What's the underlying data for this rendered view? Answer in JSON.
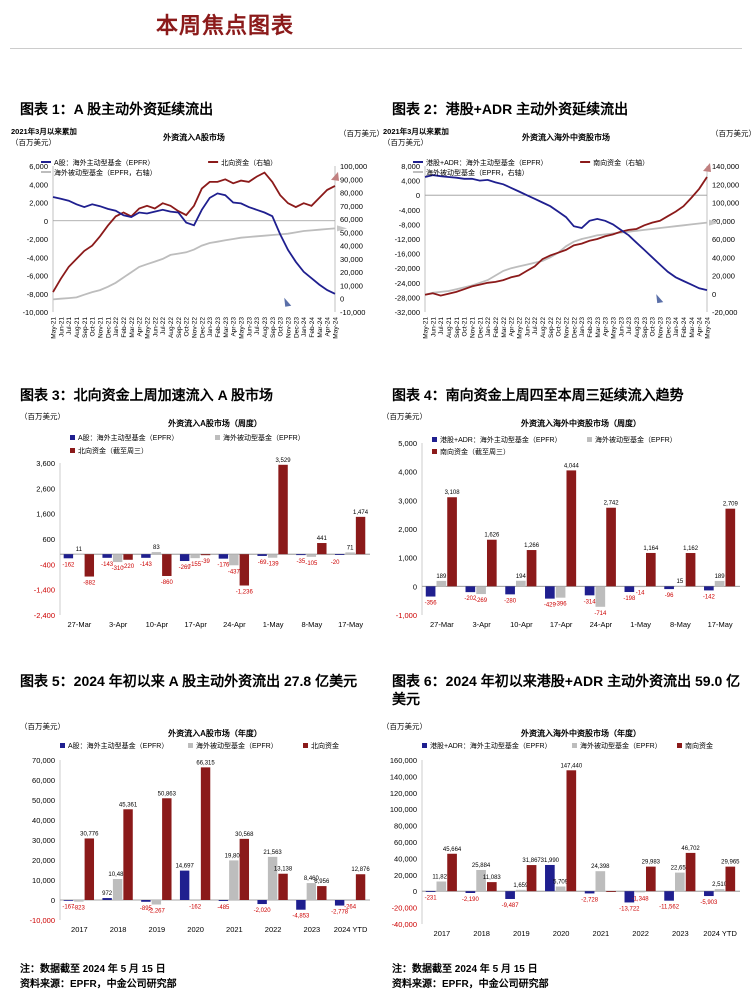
{
  "page_title": "本周焦点图表",
  "colors": {
    "navy": "#1f1f8f",
    "dred": "#8b1a1a",
    "gray": "#bdbdbd",
    "red": "#cc0000"
  },
  "figures": [
    {
      "title": "图表 1：A 股主动外资延续流出"
    },
    {
      "title": "图表 2：港股+ADR 主动外资延续流出"
    },
    {
      "title": "图表 3：北向资金上周加速流入 A 股市场"
    },
    {
      "title": "图表 4：南向资金上周四至本周三延续流入趋势"
    },
    {
      "title": "图表 5：2024 年初以来 A 股主动外资流出 27.8 亿美元"
    },
    {
      "title": "图表 6：2024 年初以来港股+ADR 主动外资流出 59.0 亿美元"
    }
  ],
  "notes": [
    "注：数据截至 2024 年 5 月 15 日",
    "资料来源：EPFR，中金公司研究部"
  ],
  "chart_data": [
    {
      "type": "line",
      "title": "外资流入A股市场",
      "subtitle": "2021年3月以来累加",
      "left_unit": "（百万美元）",
      "right_unit": "（百万美元）",
      "ylim_left": [
        -10000,
        6000
      ],
      "ylim_right": [
        -10000,
        100000
      ],
      "yticks_left": [
        "6,000",
        "4,000",
        "2,000",
        "0",
        "-2,000",
        "-4,000",
        "-6,000",
        "-8,000",
        "-10,000"
      ],
      "yticks_right": [
        "100,000",
        "90,000",
        "80,000",
        "70,000",
        "60,000",
        "50,000",
        "40,000",
        "30,000",
        "20,000",
        "10,000",
        "0",
        "-10,000"
      ],
      "x_labels": [
        "May-21",
        "Jun-21",
        "Jul-21",
        "Aug-21",
        "Sep-21",
        "Oct-21",
        "Nov-21",
        "Dec-21",
        "Jan-22",
        "Feb-22",
        "Mar-22",
        "Apr-22",
        "May-22",
        "Jun-22",
        "Jul-22",
        "Aug-22",
        "Sep-22",
        "Oct-22",
        "Nov-22",
        "Dec-22",
        "Jan-23",
        "Feb-23",
        "Mar-23",
        "Apr-23",
        "May-23",
        "Jun-23",
        "Jul-23",
        "Aug-23",
        "Sep-23",
        "Oct-23",
        "Nov-23",
        "Dec-23",
        "Jan-24",
        "Feb-24",
        "Mar-24",
        "Apr-24",
        "May-24"
      ],
      "series": [
        {
          "name": "A股：海外主动型基金（EPFR）",
          "axis": "left",
          "color": "#1f1f8f",
          "values": [
            2600,
            2400,
            2200,
            1800,
            1500,
            1800,
            1600,
            1300,
            1100,
            600,
            400,
            900,
            800,
            1000,
            1200,
            1000,
            900,
            -200,
            -500,
            1200,
            2500,
            3000,
            2800,
            2000,
            1900,
            1500,
            1200,
            900,
            500,
            -1500,
            -3200,
            -4500,
            -5600,
            -6300,
            -7000,
            -7600,
            -8000
          ]
        },
        {
          "name": "北向资金（右轴）",
          "axis": "right",
          "color": "#8b1a1a",
          "values": [
            5000,
            15000,
            24000,
            30000,
            36000,
            40000,
            47000,
            55000,
            62000,
            65000,
            62000,
            68000,
            70000,
            68000,
            72000,
            70000,
            66000,
            63000,
            70000,
            83000,
            88000,
            88000,
            90000,
            87000,
            89000,
            88000,
            92000,
            95000,
            88000,
            78000,
            72000,
            69000,
            72000,
            70000,
            76000,
            82000,
            85000
          ]
        },
        {
          "name": "海外被动型基金（EPFR，右轴）",
          "axis": "right",
          "color": "#bdbdbd",
          "values": [
            -500,
            0,
            500,
            1000,
            3000,
            5000,
            6500,
            9000,
            12000,
            16000,
            20000,
            24000,
            26000,
            28000,
            30000,
            33000,
            34000,
            35000,
            37000,
            40000,
            42000,
            43000,
            44000,
            45000,
            46000,
            46500,
            47000,
            47500,
            48000,
            48500,
            49000,
            50000,
            51000,
            51500,
            52000,
            52500,
            53000
          ]
        }
      ]
    },
    {
      "type": "line",
      "title": "外资流入海外中资股市场",
      "subtitle": "2021年3月以来累加",
      "left_unit": "（百万美元）",
      "right_unit": "（百万美元）",
      "ylim_left": [
        -32000,
        8000
      ],
      "ylim_right": [
        -20000,
        140000
      ],
      "yticks_left": [
        "8,000",
        "4,000",
        "0",
        "-4,000",
        "-8,000",
        "-12,000",
        "-16,000",
        "-20,000",
        "-24,000",
        "-28,000",
        "-32,000"
      ],
      "yticks_right": [
        "140,000",
        "120,000",
        "100,000",
        "80,000",
        "60,000",
        "40,000",
        "20,000",
        "0",
        "-20,000"
      ],
      "x_labels": [
        "May-21",
        "Jun-21",
        "Jul-21",
        "Aug-21",
        "Sep-21",
        "Oct-21",
        "Nov-21",
        "Dec-21",
        "Jan-22",
        "Feb-22",
        "Mar-22",
        "Apr-22",
        "May-22",
        "Jun-22",
        "Jul-22",
        "Aug-22",
        "Sep-22",
        "Oct-22",
        "Nov-22",
        "Dec-22",
        "Jan-23",
        "Feb-23",
        "Mar-23",
        "Apr-23",
        "May-23",
        "Jun-23",
        "Jul-23",
        "Aug-23",
        "Sep-23",
        "Oct-23",
        "Nov-23",
        "Dec-23",
        "Jan-24",
        "Feb-24",
        "Mar-24",
        "Apr-24",
        "May-24"
      ],
      "series": [
        {
          "name": "港股+ADR：海外主动型基金（EPFR）",
          "axis": "left",
          "color": "#1f1f8f",
          "values": [
            5000,
            5500,
            5200,
            5000,
            4800,
            4500,
            4500,
            4000,
            4200,
            3500,
            3000,
            2000,
            1000,
            0,
            -1000,
            -2000,
            -3000,
            -4500,
            -6000,
            -8500,
            -9000,
            -7000,
            -6500,
            -7000,
            -8000,
            -9500,
            -11000,
            -13000,
            -15000,
            -17000,
            -19000,
            -21000,
            -22500,
            -23500,
            -24500,
            -25500,
            -26000
          ]
        },
        {
          "name": "南向资金（右轴）",
          "axis": "right",
          "color": "#8b1a1a",
          "values": [
            -1000,
            500,
            -2000,
            0,
            2000,
            5000,
            8000,
            10000,
            12000,
            13000,
            15000,
            18000,
            20000,
            25000,
            30000,
            38000,
            42000,
            45000,
            48000,
            53000,
            55000,
            58000,
            60000,
            63000,
            65000,
            68000,
            70000,
            71000,
            75000,
            78000,
            80000,
            85000,
            90000,
            96000,
            105000,
            115000,
            128000
          ]
        },
        {
          "name": "海外被动型基金（EPFR，右轴）",
          "axis": "right",
          "color": "#bdbdbd",
          "values": [
            -1000,
            1000,
            2000,
            3000,
            5000,
            7000,
            9000,
            12000,
            15000,
            20000,
            25000,
            28000,
            30000,
            32000,
            34000,
            36000,
            40000,
            45000,
            52000,
            57000,
            60000,
            62000,
            64000,
            65000,
            66000,
            67000,
            68000,
            69000,
            70000,
            71000,
            72000,
            73000,
            74000,
            75000,
            76000,
            77000,
            78000
          ]
        }
      ]
    },
    {
      "type": "bar",
      "title": "外资流入A股市场（周度）",
      "unit": "（百万美元）",
      "ylim": [
        -2400,
        3600
      ],
      "yticks": [
        "3,600",
        "2,600",
        "1,600",
        "600",
        "-400",
        "-1,400",
        "-2,400"
      ],
      "categories": [
        "27-Mar",
        "3-Apr",
        "10-Apr",
        "17-Apr",
        "24-Apr",
        "1-May",
        "8-May",
        "17-May"
      ],
      "series": [
        {
          "name": "A股：海外主动型基金（EPFR）",
          "color": "#1f1f8f",
          "values": [
            -162,
            -143,
            -143,
            -269,
            -176,
            -69,
            -35,
            0
          ],
          "labels": [
            "-162",
            "-143",
            "-143",
            "-269",
            "-176",
            "-69",
            "-35",
            ""
          ]
        },
        {
          "name": "海外被动型基金（EPFR）",
          "color": "#bdbdbd",
          "values": [
            11,
            -310,
            83,
            -155,
            -437,
            -139,
            -105,
            71
          ],
          "labels": [
            "11",
            "-310",
            "83",
            "-155",
            "-437",
            "-139",
            "-105",
            "71"
          ]
        },
        {
          "name": "北向资金（截至周三）",
          "color": "#8b1a1a",
          "values": [
            -882,
            -220,
            -860,
            -39,
            -1236,
            3529,
            441,
            1474
          ],
          "labels": [
            "-882",
            "-220",
            "-860",
            "-39",
            "-1,236",
            "3,529",
            "441",
            "1,474"
          ]
        }
      ],
      "extra_labels": [
        "-20"
      ]
    },
    {
      "type": "bar",
      "title": "外资流入海外中资股市场（周度）",
      "unit": "（百万美元）",
      "ylim": [
        -1000,
        5000
      ],
      "yticks": [
        "5,000",
        "4,000",
        "3,000",
        "2,000",
        "1,000",
        "0",
        "-1,000"
      ],
      "categories": [
        "27-Mar",
        "3-Apr",
        "10-Apr",
        "17-Apr",
        "24-Apr",
        "1-May",
        "8-May",
        "17-May"
      ],
      "series": [
        {
          "name": "港股+ADR：海外主动型基金（EPFR）",
          "color": "#1f1f8f",
          "values": [
            -356,
            -202,
            -280,
            -429,
            -314,
            -198,
            -96,
            -142
          ],
          "labels": [
            "-356",
            "-202",
            "-280",
            "-429",
            "-314",
            "-198",
            "-96",
            "-142"
          ]
        },
        {
          "name": "海外被动型基金（EPFR）",
          "color": "#bdbdbd",
          "values": [
            189,
            -269,
            194,
            -396,
            -714,
            -14,
            15,
            189
          ],
          "labels": [
            "189",
            "-269",
            "194",
            "-396",
            "-714",
            "-14",
            "15",
            "189"
          ]
        },
        {
          "name": "南向资金（截至周三）",
          "color": "#8b1a1a",
          "values": [
            3108,
            1626,
            1266,
            4044,
            2742,
            1164,
            1162,
            2709
          ],
          "labels": [
            "3,108",
            "1,626",
            "1,266",
            "4,044",
            "2,742",
            "1,164",
            "1,162",
            "2,709"
          ]
        }
      ]
    },
    {
      "type": "bar",
      "title": "外资流入A股市场（年度）",
      "unit": "（百万美元）",
      "ylim": [
        -10000,
        70000
      ],
      "yticks": [
        "70,000",
        "60,000",
        "50,000",
        "40,000",
        "30,000",
        "20,000",
        "10,000",
        "0",
        "-10,000"
      ],
      "categories": [
        "2017",
        "2018",
        "2019",
        "2020",
        "2021",
        "2022",
        "2023",
        "2024 YTD"
      ],
      "series": [
        {
          "name": "A股：海外主动型基金（EPFR）",
          "color": "#1f1f8f",
          "values": [
            -167,
            972,
            -895,
            14697,
            -485,
            -2020,
            -4853,
            -2778
          ],
          "labels": [
            "-167",
            "972",
            "-895",
            "14,697",
            "-485",
            "-2,020",
            "-4,853",
            "-2,778"
          ]
        },
        {
          "name": "海外被动型基金（EPFR）",
          "color": "#bdbdbd",
          "values": [
            -823,
            10482,
            -2267,
            -162,
            19802,
            21563,
            8460,
            -264
          ],
          "labels": [
            "-823",
            "10,482",
            "-2,267",
            "-162",
            "19,802",
            "21,563",
            "8,460",
            "-264"
          ]
        },
        {
          "name": "北向资金",
          "color": "#8b1a1a",
          "values": [
            30776,
            45361,
            50863,
            66315,
            30568,
            13138,
            6956,
            12876
          ],
          "labels": [
            "30,776",
            "45,361",
            "50,863",
            "66,315",
            "30,568",
            "13,138",
            "6,956",
            "12,876"
          ]
        }
      ]
    },
    {
      "type": "bar",
      "title": "外资流入海外中资股市场（年度）",
      "unit": "（百万美元）",
      "ylim": [
        -40000,
        160000
      ],
      "yticks": [
        "160,000",
        "140,000",
        "120,000",
        "100,000",
        "80,000",
        "60,000",
        "40,000",
        "20,000",
        "0",
        "-20,000",
        "-40,000"
      ],
      "categories": [
        "2017",
        "2018",
        "2019",
        "2020",
        "2021",
        "2022",
        "2023",
        "2024 YTD"
      ],
      "series": [
        {
          "name": "港股+ADR：海外主动型基金（EPFR）",
          "color": "#1f1f8f",
          "values": [
            -231,
            -2190,
            -9487,
            31990,
            -2728,
            -13722,
            -11562,
            -5903
          ],
          "labels": [
            "-231",
            "-2,190",
            "-9,487",
            "31,990",
            "-2,728",
            "-13,722",
            "-11,562",
            "-5,903"
          ]
        },
        {
          "name": "海外被动型基金（EPFR）",
          "color": "#bdbdbd",
          "values": [
            11827,
            25884,
            1659,
            5709,
            24398,
            -1348,
            22659,
            2510
          ],
          "labels": [
            "11,827",
            "25,884",
            "1,659",
            "5,709",
            "24,398",
            "-1,348",
            "22,659",
            "2,510"
          ]
        },
        {
          "name": "南向资金",
          "color": "#8b1a1a",
          "values": [
            45664,
            11083,
            31867,
            147440,
            0,
            29983,
            46702,
            29965
          ],
          "labels": [
            "45,664",
            "11,083",
            "31,867",
            "147,440",
            "",
            "29,983",
            "46,702",
            "29,965"
          ]
        }
      ]
    }
  ]
}
